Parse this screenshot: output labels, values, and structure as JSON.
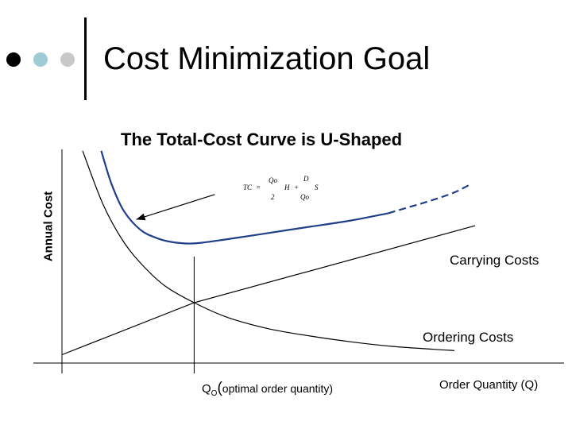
{
  "slide": {
    "title": "Cost Minimization Goal",
    "bullet_colors": [
      "#000000",
      "#9ecbd4",
      "#c8c8c8"
    ],
    "rule_color": "#000000"
  },
  "colors": {
    "total_cost": "#1f3f8a",
    "axes": "#000000",
    "carrying": "#000000",
    "ordering": "#000000"
  },
  "formula": {
    "tc": "TC",
    "eq": "=",
    "q_num": "Qo",
    "two": "2",
    "h": "H",
    "plus": "+",
    "d": "D",
    "q_den": "Qo",
    "s": "S"
  },
  "chart_data": {
    "type": "line",
    "title": "The Total-Cost Curve is U-Shaped",
    "xlabel": "Order Quantity (Q)",
    "ylabel": "Annual Cost",
    "optimal_label_main": "Q",
    "optimal_label_sub": "O",
    "optimal_label_paren": "(",
    "optimal_label_text": "optimal order quantity)",
    "axis_ticks_shown": false,
    "grid": false,
    "xlim": [
      0,
      10
    ],
    "ylim": [
      0,
      10
    ],
    "optimal_q": 3.2,
    "series": [
      {
        "name": "Carrying Costs",
        "x": [
          0,
          3.2,
          10
        ],
        "y": [
          0.4,
          2.9,
          6.6
        ]
      },
      {
        "name": "Ordering Costs",
        "x": [
          0.5,
          1,
          1.5,
          2,
          2.5,
          3.2,
          4,
          5,
          6,
          7,
          8,
          9,
          9.5
        ],
        "y": [
          10.2,
          7.6,
          5.8,
          4.6,
          3.7,
          2.9,
          2.2,
          1.65,
          1.3,
          1.02,
          0.8,
          0.66,
          0.6
        ]
      },
      {
        "name": "Total Cost",
        "x": [
          0.95,
          1.2,
          1.5,
          1.9,
          2.3,
          2.7,
          3.2,
          4,
          5,
          6,
          7,
          7.9
        ],
        "y": [
          10.2,
          8.6,
          7.3,
          6.4,
          6.0,
          5.8,
          5.75,
          5.95,
          6.25,
          6.55,
          6.85,
          7.2
        ]
      },
      {
        "name": "Total Cost (extension)",
        "x": [
          7.9,
          8.5,
          9,
          9.5,
          9.9
        ],
        "y": [
          7.2,
          7.55,
          7.85,
          8.2,
          8.6
        ]
      }
    ],
    "annotations": [
      {
        "text": "formula arrow",
        "from": [
          3.7,
          8.1
        ],
        "to": [
          1.8,
          6.9
        ]
      }
    ]
  }
}
